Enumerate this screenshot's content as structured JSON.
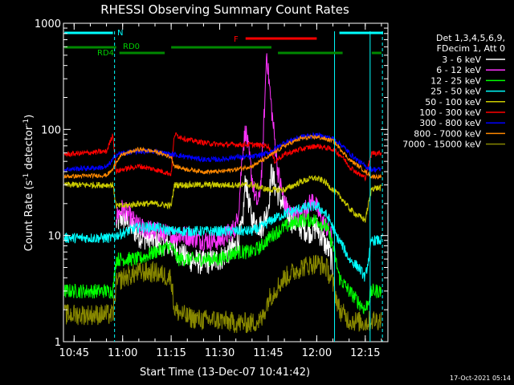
{
  "chart_data": {
    "type": "line",
    "title": "RHESSI Observing Summary Count Rates",
    "xlabel": "Start Time (13-Dec-07 10:41:42)",
    "ylabel": "Count Rate (s⁻¹ detector⁻¹)",
    "ylabel_main": "Count Rate (s",
    "ylabel_sup1": "-1",
    "ylabel_mid": " detector",
    "ylabel_sup2": "-1",
    "ylabel_end": ")",
    "y_scale": "log",
    "xlim_minutes": [
      41.7,
      142.0
    ],
    "ylim": [
      1,
      1000
    ],
    "x_ticks": [
      {
        "m": 45,
        "label": "10:45"
      },
      {
        "m": 60,
        "label": "11:00"
      },
      {
        "m": 75,
        "label": "11:15"
      },
      {
        "m": 90,
        "label": "11:30"
      },
      {
        "m": 105,
        "label": "11:45"
      },
      {
        "m": 120,
        "label": "12:00"
      },
      {
        "m": 135,
        "label": "12:15"
      }
    ],
    "y_ticks": [
      {
        "v": 1,
        "label": "1"
      },
      {
        "v": 10,
        "label": "10"
      },
      {
        "v": 100,
        "label": "100"
      },
      {
        "v": 1000,
        "label": "1000"
      }
    ],
    "legend_header": [
      "Det 1,3,4,5,6,9,",
      "FDecim 1, Att 0"
    ],
    "legend_placement": "right",
    "series": [
      {
        "name": "3 - 6 keV",
        "color": "#ffffff",
        "noise": 0.12,
        "points": [
          [
            58,
            13
          ],
          [
            60,
            15
          ],
          [
            65,
            10
          ],
          [
            70,
            9
          ],
          [
            75,
            8
          ],
          [
            80,
            6
          ],
          [
            85,
            5.5
          ],
          [
            90,
            6
          ],
          [
            95,
            8
          ],
          [
            97,
            12
          ],
          [
            98,
            35
          ],
          [
            99,
            20
          ],
          [
            100,
            14
          ],
          [
            103,
            12
          ],
          [
            105,
            18
          ],
          [
            106,
            40
          ],
          [
            107,
            30
          ],
          [
            108,
            25
          ],
          [
            110,
            18
          ],
          [
            112,
            14
          ],
          [
            115,
            12
          ],
          [
            118,
            11
          ],
          [
            120,
            12
          ],
          [
            122,
            9
          ],
          [
            124,
            7
          ],
          [
            125,
            5
          ]
        ]
      },
      {
        "name": "6 - 12 keV",
        "color": "#ff33ff",
        "noise": 0.1,
        "points": [
          [
            58,
            15
          ],
          [
            60,
            18
          ],
          [
            65,
            12
          ],
          [
            70,
            11
          ],
          [
            75,
            10
          ],
          [
            80,
            10
          ],
          [
            85,
            9
          ],
          [
            90,
            9
          ],
          [
            95,
            12
          ],
          [
            96,
            20
          ],
          [
            97,
            60
          ],
          [
            98,
            100
          ],
          [
            99,
            60
          ],
          [
            100,
            35
          ],
          [
            101,
            22
          ],
          [
            102,
            20
          ],
          [
            103,
            40
          ],
          [
            104,
            200
          ],
          [
            104.5,
            550
          ],
          [
            105,
            350
          ],
          [
            106,
            160
          ],
          [
            107,
            80
          ],
          [
            108,
            40
          ],
          [
            110,
            20
          ],
          [
            112,
            16
          ],
          [
            114,
            15
          ],
          [
            116,
            17
          ],
          [
            118,
            20
          ],
          [
            119,
            22
          ],
          [
            121,
            15
          ],
          [
            123,
            12
          ],
          [
            125,
            9
          ]
        ]
      },
      {
        "name": "12 - 25 keV",
        "color": "#00ff00",
        "noise": 0.07,
        "points": [
          [
            42,
            3
          ],
          [
            57,
            3
          ],
          [
            58,
            6
          ],
          [
            60,
            6
          ],
          [
            65,
            6
          ],
          [
            70,
            7
          ],
          [
            75,
            8
          ],
          [
            77,
            6
          ],
          [
            80,
            6
          ],
          [
            85,
            6
          ],
          [
            90,
            6
          ],
          [
            95,
            7
          ],
          [
            100,
            7
          ],
          [
            103,
            8
          ],
          [
            106,
            10
          ],
          [
            110,
            12
          ],
          [
            115,
            14
          ],
          [
            120,
            14
          ],
          [
            123,
            12
          ],
          [
            125,
            8
          ],
          [
            127,
            4
          ],
          [
            130,
            3
          ],
          [
            135,
            2
          ],
          [
            137,
            3
          ],
          [
            140,
            3
          ]
        ]
      },
      {
        "name": "25 - 50 keV",
        "color": "#00ffff",
        "noise": 0.05,
        "points": [
          [
            42,
            9.5
          ],
          [
            57,
            9.5
          ],
          [
            58,
            10
          ],
          [
            65,
            12
          ],
          [
            70,
            12
          ],
          [
            75,
            11
          ],
          [
            80,
            11
          ],
          [
            90,
            11
          ],
          [
            100,
            11
          ],
          [
            103,
            12
          ],
          [
            106,
            14
          ],
          [
            110,
            16
          ],
          [
            115,
            18
          ],
          [
            120,
            19
          ],
          [
            122,
            17
          ],
          [
            124,
            14
          ],
          [
            126,
            10
          ],
          [
            128,
            8
          ],
          [
            130,
            6
          ],
          [
            133,
            5
          ],
          [
            135,
            4
          ],
          [
            137,
            9
          ],
          [
            140,
            9
          ]
        ]
      },
      {
        "name": "50 - 100 keV",
        "color": "#cccc00",
        "noise": 0.03,
        "points": [
          [
            42,
            30
          ],
          [
            57,
            30
          ],
          [
            58,
            19
          ],
          [
            60,
            19
          ],
          [
            65,
            20
          ],
          [
            70,
            20
          ],
          [
            75,
            19
          ],
          [
            76,
            30
          ],
          [
            80,
            30
          ],
          [
            90,
            30
          ],
          [
            95,
            30
          ],
          [
            100,
            30
          ],
          [
            105,
            27
          ],
          [
            110,
            27
          ],
          [
            115,
            32
          ],
          [
            119,
            35
          ],
          [
            122,
            33
          ],
          [
            125,
            27
          ],
          [
            128,
            22
          ],
          [
            130,
            18
          ],
          [
            132,
            16
          ],
          [
            135,
            14
          ],
          [
            137,
            28
          ],
          [
            140,
            28
          ]
        ]
      },
      {
        "name": "100 - 300 keV",
        "color": "#ff0000",
        "noise": 0.025,
        "points": [
          [
            42,
            58
          ],
          [
            55,
            62
          ],
          [
            57,
            90
          ],
          [
            58,
            40
          ],
          [
            60,
            42
          ],
          [
            65,
            45
          ],
          [
            70,
            42
          ],
          [
            75,
            38
          ],
          [
            76,
            90
          ],
          [
            80,
            80
          ],
          [
            85,
            75
          ],
          [
            90,
            72
          ],
          [
            95,
            72
          ],
          [
            100,
            72
          ],
          [
            105,
            70
          ],
          [
            107,
            50
          ],
          [
            110,
            58
          ],
          [
            115,
            65
          ],
          [
            120,
            70
          ],
          [
            125,
            65
          ],
          [
            128,
            55
          ],
          [
            130,
            45
          ],
          [
            133,
            38
          ],
          [
            135,
            35
          ],
          [
            137,
            60
          ],
          [
            140,
            60
          ]
        ]
      },
      {
        "name": "300 - 800 keV",
        "color": "#0000ff",
        "noise": 0.025,
        "points": [
          [
            42,
            42
          ],
          [
            55,
            44
          ],
          [
            57,
            52
          ],
          [
            58,
            58
          ],
          [
            60,
            60
          ],
          [
            65,
            62
          ],
          [
            70,
            62
          ],
          [
            75,
            58
          ],
          [
            76,
            58
          ],
          [
            80,
            55
          ],
          [
            85,
            52
          ],
          [
            90,
            52
          ],
          [
            95,
            55
          ],
          [
            100,
            55
          ],
          [
            105,
            60
          ],
          [
            110,
            75
          ],
          [
            115,
            85
          ],
          [
            120,
            88
          ],
          [
            125,
            82
          ],
          [
            128,
            70
          ],
          [
            130,
            60
          ],
          [
            133,
            50
          ],
          [
            135,
            45
          ],
          [
            137,
            42
          ],
          [
            140,
            42
          ]
        ]
      },
      {
        "name": "800 - 7000 keV",
        "color": "#ff8800",
        "noise": 0.02,
        "points": [
          [
            42,
            36
          ],
          [
            55,
            37
          ],
          [
            57,
            42
          ],
          [
            58,
            50
          ],
          [
            60,
            58
          ],
          [
            65,
            65
          ],
          [
            70,
            62
          ],
          [
            75,
            55
          ],
          [
            76,
            45
          ],
          [
            80,
            42
          ],
          [
            85,
            40
          ],
          [
            90,
            40
          ],
          [
            95,
            42
          ],
          [
            100,
            45
          ],
          [
            105,
            55
          ],
          [
            110,
            70
          ],
          [
            115,
            82
          ],
          [
            120,
            85
          ],
          [
            125,
            78
          ],
          [
            128,
            62
          ],
          [
            130,
            52
          ],
          [
            133,
            45
          ],
          [
            135,
            40
          ],
          [
            137,
            36
          ],
          [
            140,
            36
          ]
        ]
      },
      {
        "name": "7000 - 15000 keV",
        "color": "#888800",
        "noise": 0.1,
        "points": [
          [
            42,
            1.8
          ],
          [
            57,
            1.8
          ],
          [
            58,
            3.5
          ],
          [
            60,
            4
          ],
          [
            65,
            4.5
          ],
          [
            70,
            4.5
          ],
          [
            75,
            4
          ],
          [
            76,
            2
          ],
          [
            80,
            1.7
          ],
          [
            85,
            1.6
          ],
          [
            90,
            1.6
          ],
          [
            95,
            1.5
          ],
          [
            100,
            1.5
          ],
          [
            103,
            1.6
          ],
          [
            105,
            2.5
          ],
          [
            110,
            4
          ],
          [
            115,
            5
          ],
          [
            120,
            5.5
          ],
          [
            123,
            5
          ],
          [
            125,
            3.5
          ],
          [
            127,
            2
          ],
          [
            130,
            1.6
          ],
          [
            135,
            1.5
          ],
          [
            137,
            1.6
          ],
          [
            140,
            1.6
          ]
        ]
      }
    ],
    "annotations": {
      "labels": [
        "N",
        "RD0",
        "RD4",
        "F"
      ],
      "bars": [
        {
          "label": "N",
          "color": "#00ffff",
          "level": 1,
          "segments": [
            [
              42,
              57
            ],
            [
              127,
              140.5
            ]
          ]
        },
        {
          "label": "F",
          "color": "#ff0000",
          "level": 2,
          "segments": [
            [
              98,
              120
            ]
          ]
        },
        {
          "label": "RD",
          "color": "#008800",
          "level": 3,
          "segments": [
            [
              42,
              58
            ],
            [
              75,
              106
            ]
          ]
        },
        {
          "label": "RD",
          "color": "#008800",
          "level": 4,
          "segments": [
            [
              59,
              73
            ],
            [
              108,
              128
            ],
            [
              137,
              140
            ]
          ]
        }
      ],
      "vlines": [
        {
          "m": 57.5,
          "style": "dashed"
        },
        {
          "m": 125.5,
          "style": "solid"
        },
        {
          "m": 136.5,
          "style": "solid"
        },
        {
          "m": 140.3,
          "style": "dashed"
        }
      ]
    }
  },
  "footer": {
    "timestamp": "17-Oct-2021 05:14"
  }
}
